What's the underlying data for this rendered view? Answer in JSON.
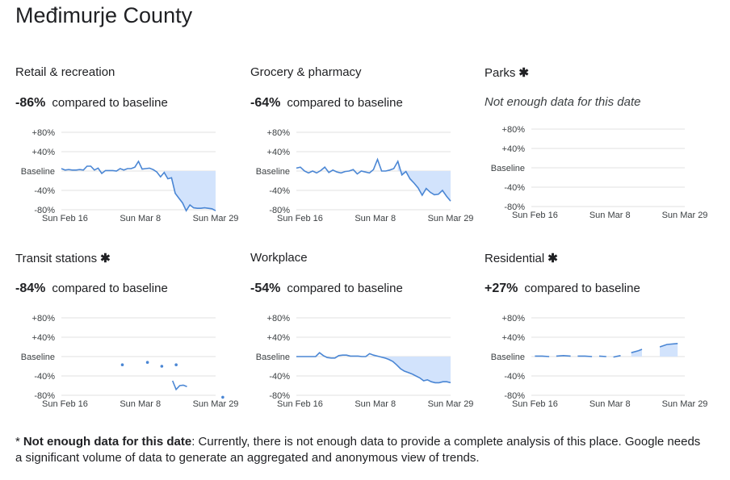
{
  "page": {
    "title": "Međimurje County"
  },
  "footnote": {
    "star": "*",
    "bold": "Not enough data for this date",
    "text": ": Currently, there is not enough data to provide a complete analysis of this place. Google needs a significant volume of data to generate an aggregated and anonymous view of trends."
  },
  "panels": [
    {
      "title": "Retail & recreation",
      "star": "",
      "percent": "-86%",
      "compare": "compared to baseline",
      "nodata": ""
    },
    {
      "title": "Grocery & pharmacy",
      "star": "",
      "percent": "-64%",
      "compare": "compared to baseline",
      "nodata": ""
    },
    {
      "title": "Parks",
      "star": "✱",
      "percent": "",
      "compare": "",
      "nodata": "Not enough data for this date"
    },
    {
      "title": "Transit stations",
      "star": "✱",
      "percent": "-84%",
      "compare": "compared to baseline",
      "nodata": ""
    },
    {
      "title": "Workplace",
      "star": "",
      "percent": "-54%",
      "compare": "compared to baseline",
      "nodata": ""
    },
    {
      "title": "Residential",
      "star": "✱",
      "percent": "+27%",
      "compare": "compared to baseline",
      "nodata": ""
    }
  ],
  "colors": {
    "line": "#4a86d4",
    "fill": "#d2e3fc",
    "grid": "#e0e0e0"
  },
  "chart_data": [
    {
      "type": "line",
      "title": "Retail & recreation",
      "yticks": [
        "+80%",
        "+40%",
        "Baseline",
        "-40%",
        "-80%"
      ],
      "xticks": [
        "Sun Feb 16",
        "Sun Mar 8",
        "Sun Mar 29"
      ],
      "ylim": [
        -80,
        80
      ],
      "x_start": "2020-02-15",
      "x_end": "2020-03-29",
      "shade_from_day": 28,
      "values": [
        5,
        2,
        3,
        2,
        2,
        3,
        2,
        10,
        10,
        2,
        6,
        -5,
        1,
        1,
        1,
        0,
        5,
        2,
        5,
        5,
        8,
        20,
        4,
        5,
        6,
        3,
        -2,
        -12,
        -3,
        -16,
        -14,
        -46,
        -56,
        -66,
        -82,
        -70,
        -76,
        -77,
        -77,
        -76,
        -77,
        -78,
        -82
      ]
    },
    {
      "type": "line",
      "title": "Grocery & pharmacy",
      "yticks": [
        "+80%",
        "+40%",
        "Baseline",
        "-40%",
        "-80%"
      ],
      "xticks": [
        "Sun Feb 16",
        "Sun Mar 8",
        "Sun Mar 29"
      ],
      "ylim": [
        -80,
        80
      ],
      "x_start": "2020-02-15",
      "x_end": "2020-03-29",
      "shade_from_day": 28,
      "values": [
        6,
        8,
        0,
        -4,
        0,
        -4,
        1,
        8,
        -3,
        2,
        -2,
        -4,
        -1,
        0,
        3,
        -6,
        0,
        -2,
        -4,
        3,
        24,
        0,
        0,
        2,
        5,
        20,
        -8,
        -1,
        -16,
        -25,
        -35,
        -50,
        -36,
        -44,
        -49,
        -48,
        -40,
        -52,
        -62
      ]
    },
    {
      "type": "line",
      "title": "Parks",
      "yticks": [
        "+80%",
        "+40%",
        "Baseline",
        "-40%",
        "-80%"
      ],
      "xticks": [
        "Sun Feb 16",
        "Sun Mar 8",
        "Sun Mar 29"
      ],
      "ylim": [
        -80,
        80
      ],
      "x_start": "2020-02-15",
      "x_end": "2020-03-29",
      "shade_from_day": null,
      "values": []
    },
    {
      "type": "line",
      "title": "Transit stations",
      "yticks": [
        "+80%",
        "+40%",
        "Baseline",
        "-40%",
        "-80%"
      ],
      "xticks": [
        "Sun Feb 16",
        "Sun Mar 8",
        "Sun Mar 29"
      ],
      "ylim": [
        -80,
        80
      ],
      "x_start": "2020-02-15",
      "x_end": "2020-03-29",
      "shade_regions": [
        [
          28,
          31
        ]
      ],
      "segments": [
        [
          [
            31,
            -50
          ],
          [
            32,
            -68
          ],
          [
            33,
            -60
          ],
          [
            34,
            -59
          ],
          [
            35,
            -62
          ]
        ],
        [
          [
            17,
            -17
          ],
          [
            24,
            -12
          ],
          [
            28,
            -20
          ],
          [
            32,
            -17
          ],
          [
            45,
            -84
          ]
        ]
      ]
    },
    {
      "type": "line",
      "title": "Workplace",
      "yticks": [
        "+80%",
        "+40%",
        "Baseline",
        "-40%",
        "-80%"
      ],
      "xticks": [
        "Sun Feb 16",
        "Sun Mar 8",
        "Sun Mar 29"
      ],
      "ylim": [
        -80,
        80
      ],
      "x_start": "2020-02-15",
      "x_end": "2020-03-29",
      "shade_from_day": 21,
      "values": [
        0,
        0,
        0,
        0,
        0,
        0,
        8,
        2,
        -2,
        -3,
        -3,
        2,
        3,
        3,
        1,
        1,
        1,
        0,
        0,
        6,
        3,
        1,
        -1,
        -3,
        -6,
        -10,
        -17,
        -25,
        -30,
        -33,
        -36,
        -40,
        -44,
        -50,
        -48,
        -52,
        -54,
        -54,
        -52,
        -52,
        -54
      ]
    },
    {
      "type": "line",
      "title": "Residential",
      "yticks": [
        "+80%",
        "+40%",
        "Baseline",
        "-40%",
        "-80%"
      ],
      "xticks": [
        "Sun Feb 16",
        "Sun Mar 8",
        "Sun Mar 29"
      ],
      "ylim": [
        -80,
        80
      ],
      "x_start": "2020-02-15",
      "x_end": "2020-03-29",
      "shade_regions": [
        [
          28,
          31
        ],
        [
          36,
          41
        ]
      ],
      "segments": [
        [
          [
            1,
            1
          ],
          [
            3,
            1
          ],
          [
            5,
            0
          ]
        ],
        [
          [
            7,
            1
          ],
          [
            9,
            2
          ],
          [
            11,
            1
          ]
        ],
        [
          [
            13,
            1
          ],
          [
            15,
            1
          ],
          [
            17,
            0
          ]
        ],
        [
          [
            19,
            1
          ],
          [
            21,
            0
          ]
        ],
        [
          [
            23,
            -1
          ],
          [
            25,
            2
          ]
        ],
        [
          [
            28,
            8
          ],
          [
            30,
            12
          ],
          [
            31,
            15
          ]
        ],
        [
          [
            36,
            20
          ],
          [
            38,
            25
          ],
          [
            41,
            27
          ]
        ]
      ]
    }
  ]
}
